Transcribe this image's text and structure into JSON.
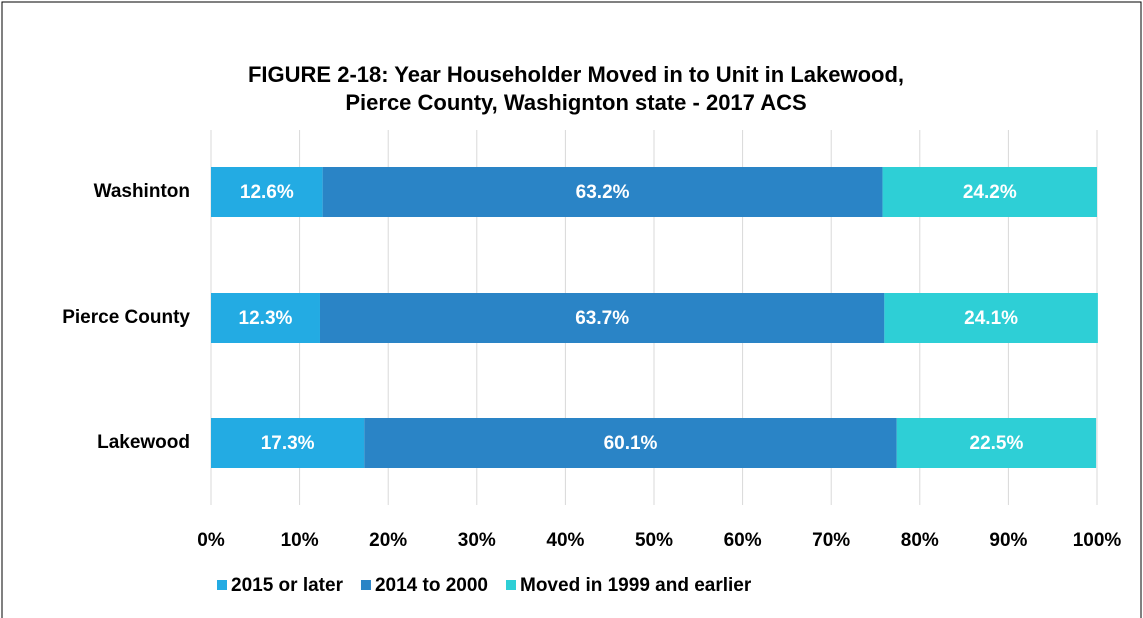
{
  "chart_data": {
    "type": "stacked_bar_horizontal",
    "title": [
      "FIGURE 2-18: Year Householder Moved in to Unit in Lakewood,",
      "Pierce County, Washignton state - 2017 ACS"
    ],
    "categories": [
      "Washinton",
      "Pierce County",
      "Lakewood"
    ],
    "series": [
      {
        "name": "2015 or later",
        "color": "#23abe3",
        "values": [
          12.6,
          12.3,
          17.3
        ],
        "value_labels": [
          "12.6%",
          "12.3%",
          "17.3%"
        ]
      },
      {
        "name": "2014 to 2000",
        "color": "#2a84c6",
        "values": [
          63.2,
          63.7,
          60.1
        ],
        "value_labels": [
          "63.2%",
          "63.7%",
          "60.1%"
        ]
      },
      {
        "name": "Moved in 1999 and earlier",
        "color": "#2ecfd6",
        "values": [
          24.2,
          24.1,
          22.5
        ],
        "value_labels": [
          "24.2%",
          "24.1%",
          "22.5%"
        ]
      }
    ],
    "xlim": [
      0,
      100
    ],
    "xticks": [
      {
        "value": 0,
        "label": "0%"
      },
      {
        "value": 10,
        "label": "10%"
      },
      {
        "value": 20,
        "label": "20%"
      },
      {
        "value": 30,
        "label": "30%"
      },
      {
        "value": 40,
        "label": "40%"
      },
      {
        "value": 50,
        "label": "50%"
      },
      {
        "value": 60,
        "label": "60%"
      },
      {
        "value": 70,
        "label": "70%"
      },
      {
        "value": 80,
        "label": "80%"
      },
      {
        "value": 90,
        "label": "90%"
      },
      {
        "value": 100,
        "label": "100%"
      }
    ],
    "grid": true,
    "legend": "bottom"
  }
}
